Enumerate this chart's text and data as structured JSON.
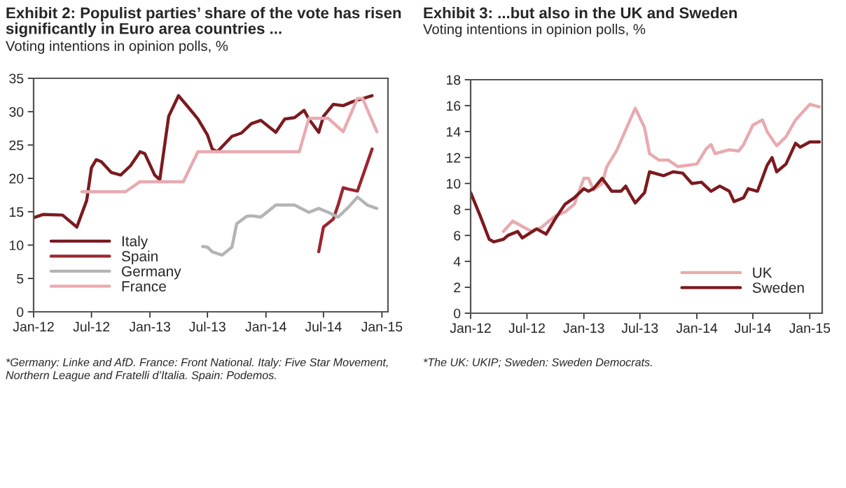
{
  "chart_data": [
    {
      "type": "line",
      "title": "Exhibit 2: Populist parties’ share of the vote has risen\nsignificantly in Euro area countries ...",
      "subtitle": "Voting intentions in opinion polls, %",
      "annotations": [
        "*Germany: Linke and AfD. France: Front National. Italy: Five Star Movement,\nNorthern League and Fratelli d’Italia. Spain: Podemos."
      ],
      "xlim": [
        "2012-01-01",
        "2015-01-20"
      ],
      "xticks": [
        {
          "value": "2012-01-01",
          "label": "Jan-12"
        },
        {
          "value": "2012-07-01",
          "label": "Jul-12"
        },
        {
          "value": "2013-01-01",
          "label": "Jan-13"
        },
        {
          "value": "2013-07-01",
          "label": "Jul-13"
        },
        {
          "value": "2014-01-01",
          "label": "Jan-14"
        },
        {
          "value": "2014-07-01",
          "label": "Jul-14"
        },
        {
          "value": "2015-01-01",
          "label": "Jan-15"
        }
      ],
      "ylim": [
        0,
        35
      ],
      "yticks": [
        0,
        5,
        10,
        15,
        20,
        25,
        30,
        35
      ],
      "grid": false,
      "legend": "bottom left",
      "series": [
        {
          "name": "Italy",
          "color": "#7b1a1f",
          "x": [
            "2012-01-01",
            "2012-02-01",
            "2012-04-01",
            "2012-04-16",
            "2012-05-16",
            "2012-06-16",
            "2012-07-01",
            "2012-07-16",
            "2012-08-01",
            "2012-09-01",
            "2012-10-01",
            "2012-11-01",
            "2012-12-01",
            "2012-12-16",
            "2013-01-16",
            "2013-02-01",
            "2013-03-01",
            "2013-04-01",
            "2013-05-01",
            "2013-06-01",
            "2013-07-01",
            "2013-07-16",
            "2013-08-01",
            "2013-09-16",
            "2013-10-16",
            "2013-11-16",
            "2013-12-16",
            "2014-02-01",
            "2014-03-01",
            "2014-04-01",
            "2014-05-01",
            "2014-05-16",
            "2014-06-16",
            "2014-07-01",
            "2014-08-01",
            "2014-09-01",
            "2014-10-01",
            "2014-12-01"
          ],
          "values": [
            14.1,
            14.6,
            14.5,
            13.9,
            12.7,
            16.7,
            21.6,
            22.8,
            22.5,
            20.9,
            20.5,
            21.9,
            24.0,
            23.7,
            20.5,
            19.8,
            29.3,
            32.4,
            30.7,
            28.9,
            26.5,
            24.4,
            24.0,
            26.3,
            26.8,
            28.2,
            28.7,
            26.9,
            28.9,
            29.1,
            30.2,
            28.9,
            26.9,
            29.3,
            31.1,
            30.9,
            31.5,
            32.4
          ]
        },
        {
          "name": "Spain",
          "color": "#9b2530",
          "x": [
            "2014-06-16",
            "2014-07-01",
            "2014-08-01",
            "2014-08-16",
            "2014-09-01",
            "2014-09-16",
            "2014-10-16",
            "2014-12-01"
          ],
          "values": [
            9.0,
            12.7,
            13.9,
            16.0,
            18.6,
            18.4,
            18.1,
            24.4
          ]
        },
        {
          "name": "Germany",
          "color": "#b4b4b4",
          "x": [
            "2013-06-16",
            "2013-07-01",
            "2013-07-16",
            "2013-08-16",
            "2013-09-16",
            "2013-10-01",
            "2013-11-01",
            "2013-11-16",
            "2013-12-16",
            "2014-02-01",
            "2014-04-01",
            "2014-05-16",
            "2014-06-16",
            "2014-07-16",
            "2014-08-16",
            "2014-09-16",
            "2014-10-16",
            "2014-11-16",
            "2014-12-16"
          ],
          "values": [
            9.8,
            9.7,
            9.0,
            8.5,
            9.7,
            13.2,
            14.3,
            14.4,
            14.2,
            16.0,
            16.0,
            14.9,
            15.5,
            14.9,
            14.2,
            15.6,
            17.2,
            16.0,
            15.5
          ]
        },
        {
          "name": "France",
          "color": "#e8aab0",
          "x": [
            "2012-06-01",
            "2012-10-16",
            "2012-12-01",
            "2013-04-16",
            "2013-06-01",
            "2014-04-16",
            "2014-05-16",
            "2014-07-16",
            "2014-09-01",
            "2014-10-16",
            "2014-11-01",
            "2014-12-16"
          ],
          "values": [
            18,
            18,
            19.5,
            19.5,
            24,
            24,
            29,
            29,
            27,
            32,
            32,
            27
          ]
        }
      ]
    },
    {
      "type": "line",
      "title": "Exhibit 3: ...but also in the UK and Sweden",
      "subtitle": "Voting intentions in opinion polls, %",
      "annotations": [
        "*The UK: UKIP; Sweden: Sweden Democrats."
      ],
      "xlim": [
        "2012-01-01",
        "2015-02-10"
      ],
      "xticks": [
        {
          "value": "2012-01-01",
          "label": "Jan-12"
        },
        {
          "value": "2012-07-01",
          "label": "Jul-12"
        },
        {
          "value": "2013-01-01",
          "label": "Jan-13"
        },
        {
          "value": "2013-07-01",
          "label": "Jul-13"
        },
        {
          "value": "2014-01-01",
          "label": "Jan-14"
        },
        {
          "value": "2014-07-01",
          "label": "Jul-14"
        },
        {
          "value": "2015-01-01",
          "label": "Jan-15"
        }
      ],
      "ylim": [
        0,
        18
      ],
      "yticks": [
        0,
        2,
        4,
        6,
        8,
        10,
        12,
        14,
        16,
        18
      ],
      "grid": false,
      "legend": "bottom right",
      "series": [
        {
          "name": "UK",
          "color": "#e8aab0",
          "x": [
            "2012-04-16",
            "2012-05-16",
            "2012-06-16",
            "2012-07-16",
            "2012-08-16",
            "2012-10-01",
            "2012-11-01",
            "2012-12-01",
            "2013-01-01",
            "2013-01-16",
            "2013-02-01",
            "2013-03-01",
            "2013-03-16",
            "2013-04-16",
            "2013-06-01",
            "2013-06-16",
            "2013-07-16",
            "2013-08-01",
            "2013-09-01",
            "2013-10-01",
            "2013-11-01",
            "2013-12-01",
            "2014-01-01",
            "2014-02-01",
            "2014-02-16",
            "2014-03-01",
            "2014-04-16",
            "2014-05-16",
            "2014-06-01",
            "2014-07-01",
            "2014-08-01",
            "2014-08-16",
            "2014-09-16",
            "2014-10-16",
            "2014-11-16",
            "2015-01-01",
            "2015-02-01"
          ],
          "values": [
            6.3,
            7.1,
            6.7,
            6.3,
            6.6,
            7.5,
            7.8,
            8.4,
            10.4,
            10.4,
            9.5,
            10.0,
            11.3,
            12.5,
            15.0,
            15.8,
            14.3,
            12.3,
            11.8,
            11.8,
            11.3,
            11.4,
            11.5,
            12.7,
            13.0,
            12.3,
            12.6,
            12.5,
            13.0,
            14.5,
            14.9,
            14.0,
            12.9,
            13.6,
            14.9,
            16.1,
            15.9
          ]
        },
        {
          "name": "Sweden",
          "color": "#7b1a1f",
          "x": [
            "2012-01-01",
            "2012-02-01",
            "2012-03-01",
            "2012-03-16",
            "2012-04-16",
            "2012-05-01",
            "2012-06-01",
            "2012-06-16",
            "2012-08-01",
            "2012-09-01",
            "2012-10-01",
            "2012-11-01",
            "2012-12-01",
            "2013-01-01",
            "2013-01-16",
            "2013-02-01",
            "2013-03-01",
            "2013-04-01",
            "2013-05-01",
            "2013-05-16",
            "2013-06-01",
            "2013-06-16",
            "2013-07-16",
            "2013-08-01",
            "2013-09-16",
            "2013-10-16",
            "2013-11-16",
            "2013-12-16",
            "2014-01-16",
            "2014-02-16",
            "2014-03-16",
            "2014-04-16",
            "2014-05-01",
            "2014-06-01",
            "2014-06-16",
            "2014-07-16",
            "2014-08-16",
            "2014-09-01",
            "2014-09-16",
            "2014-10-16",
            "2014-11-16",
            "2014-12-01",
            "2015-01-01",
            "2015-02-01"
          ],
          "values": [
            9.3,
            7.5,
            5.7,
            5.5,
            5.7,
            6.0,
            6.3,
            5.8,
            6.5,
            6.1,
            7.3,
            8.4,
            8.9,
            9.6,
            9.4,
            9.6,
            10.4,
            9.4,
            9.4,
            9.8,
            9.1,
            8.5,
            9.3,
            10.9,
            10.6,
            10.9,
            10.8,
            10.0,
            10.1,
            9.4,
            9.8,
            9.4,
            8.6,
            8.9,
            9.6,
            9.4,
            11.4,
            12.0,
            10.9,
            11.5,
            13.1,
            12.8,
            13.2,
            13.2
          ]
        }
      ]
    }
  ]
}
